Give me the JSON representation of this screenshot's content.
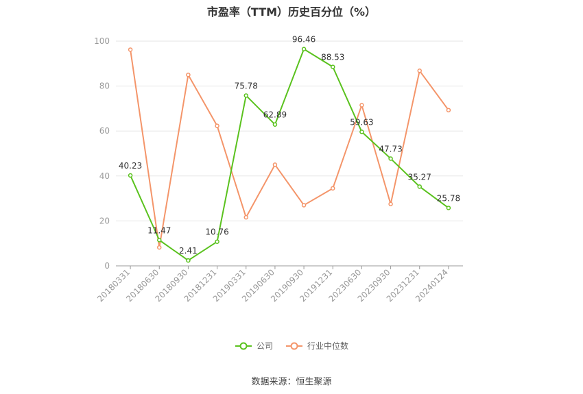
{
  "chart_data": {
    "type": "line",
    "title": "市盈率（TTM）历史百分位（%）",
    "categories": [
      "20180331",
      "20180630",
      "20180930",
      "20181231",
      "20190331",
      "20190630",
      "20190930",
      "20191231",
      "20230630",
      "20230930",
      "20231231",
      "20240124"
    ],
    "ylim": [
      0,
      100
    ],
    "yticks": [
      0,
      20,
      40,
      60,
      80,
      100
    ],
    "grid": true,
    "legend_position": "bottom",
    "series": [
      {
        "name": "公司",
        "color": "#5ac21e",
        "labels": true,
        "values": [
          40.23,
          11.47,
          2.41,
          10.76,
          75.78,
          62.89,
          96.46,
          88.53,
          59.63,
          47.73,
          35.27,
          25.78
        ]
      },
      {
        "name": "行业中位数",
        "color": "#f4956a",
        "labels": false,
        "values": [
          96.2,
          8.2,
          85.0,
          62.3,
          21.6,
          45.0,
          27.0,
          34.5,
          71.5,
          27.5,
          86.8,
          69.3
        ]
      }
    ]
  },
  "source": "数据来源：恒生聚源"
}
